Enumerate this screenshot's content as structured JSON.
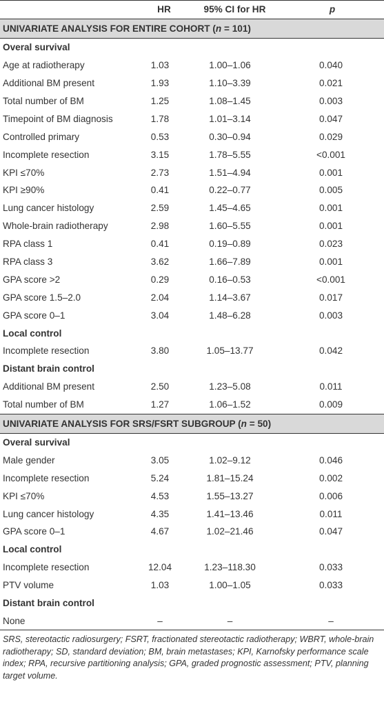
{
  "columns": {
    "label": "",
    "hr": "HR",
    "ci": "95% CI for HR",
    "p": "p"
  },
  "sections": [
    {
      "title_prefix": "UNIVARIATE ANALYSIS FOR ENTIRE COHORT (",
      "title_n": "n",
      "title_suffix": " = 101)",
      "groups": [
        {
          "name": "Overal survival",
          "rows": [
            {
              "label": "Age at radiotherapy",
              "hr": "1.03",
              "ci": "1.00–1.06",
              "p": "0.040"
            },
            {
              "label": "Additional BM present",
              "hr": "1.93",
              "ci": "1.10–3.39",
              "p": "0.021"
            },
            {
              "label": "Total number of BM",
              "hr": "1.25",
              "ci": "1.08–1.45",
              "p": "0.003"
            },
            {
              "label": "Timepoint of BM diagnosis",
              "hr": "1.78",
              "ci": "1.01–3.14",
              "p": "0.047"
            },
            {
              "label": "Controlled primary",
              "hr": "0.53",
              "ci": "0.30–0.94",
              "p": "0.029"
            },
            {
              "label": "Incomplete resection",
              "hr": "3.15",
              "ci": "1.78–5.55",
              "p": "<0.001"
            },
            {
              "label": "KPI ≤70%",
              "hr": "2.73",
              "ci": "1.51–4.94",
              "p": "0.001"
            },
            {
              "label": "KPI ≥90%",
              "hr": "0.41",
              "ci": "0.22–0.77",
              "p": "0.005"
            },
            {
              "label": "Lung cancer histology",
              "hr": "2.59",
              "ci": "1.45–4.65",
              "p": "0.001"
            },
            {
              "label": "Whole-brain radiotherapy",
              "hr": "2.98",
              "ci": "1.60–5.55",
              "p": "0.001"
            },
            {
              "label": "RPA class 1",
              "hr": "0.41",
              "ci": "0.19–0.89",
              "p": "0.023"
            },
            {
              "label": "RPA class 3",
              "hr": "3.62",
              "ci": "1.66–7.89",
              "p": "0.001"
            },
            {
              "label": "GPA score >2",
              "hr": "0.29",
              "ci": "0.16–0.53",
              "p": "<0.001"
            },
            {
              "label": "GPA score 1.5–2.0",
              "hr": "2.04",
              "ci": "1.14–3.67",
              "p": "0.017"
            },
            {
              "label": "GPA score 0–1",
              "hr": "3.04",
              "ci": "1.48–6.28",
              "p": "0.003"
            }
          ]
        },
        {
          "name": "Local control",
          "rows": [
            {
              "label": "Incomplete resection",
              "hr": "3.80",
              "ci": "1.05–13.77",
              "p": "0.042"
            }
          ]
        },
        {
          "name": "Distant brain control",
          "rows": [
            {
              "label": "Additional BM present",
              "hr": "2.50",
              "ci": "1.23–5.08",
              "p": "0.011"
            },
            {
              "label": "Total number of BM",
              "hr": "1.27",
              "ci": "1.06–1.52",
              "p": "0.009"
            }
          ]
        }
      ]
    },
    {
      "title_prefix": "UNIVARIATE ANALYSIS FOR SRS/FSRT SUBGROUP (",
      "title_n": "n",
      "title_suffix": " = 50)",
      "groups": [
        {
          "name": "Overal survival",
          "rows": [
            {
              "label": "Male gender",
              "hr": "3.05",
              "ci": "1.02–9.12",
              "p": "0.046"
            },
            {
              "label": "Incomplete resection",
              "hr": "5.24",
              "ci": "1.81–15.24",
              "p": "0.002"
            },
            {
              "label": "KPI ≤70%",
              "hr": "4.53",
              "ci": "1.55–13.27",
              "p": "0.006"
            },
            {
              "label": "Lung cancer histology",
              "hr": "4.35",
              "ci": "1.41–13.46",
              "p": "0.011"
            },
            {
              "label": "GPA score 0–1",
              "hr": "4.67",
              "ci": "1.02–21.46",
              "p": "0.047"
            }
          ]
        },
        {
          "name": "Local control",
          "rows": [
            {
              "label": "Incomplete resection",
              "hr": "12.04",
              "ci": "1.23–118.30",
              "p": "0.033"
            },
            {
              "label": "PTV volume",
              "hr": "1.03",
              "ci": "1.00–1.05",
              "p": "0.033"
            }
          ]
        },
        {
          "name": "Distant brain control",
          "rows": [
            {
              "label": "None",
              "hr": "–",
              "ci": "–",
              "p": "–"
            }
          ]
        }
      ]
    }
  ],
  "footnote": "SRS, stereotactic radiosurgery; FSRT, fractionated stereotactic radiotherapy; WBRT, whole-brain radiotherapy; SD, standard deviation; BM, brain metastases; KPI, Karnofsky performance scale index; RPA, recursive partitioning analysis; GPA, graded prognostic assessment; PTV, planning target volume."
}
